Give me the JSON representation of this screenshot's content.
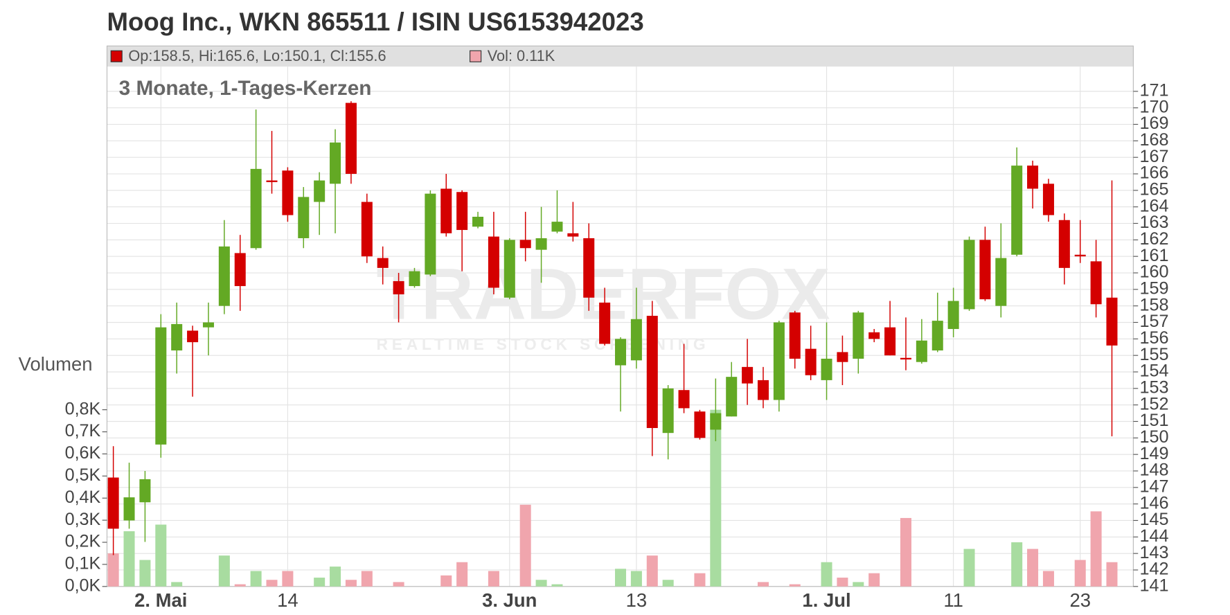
{
  "chart_data": {
    "type": "candlestick",
    "title": "Moog Inc., WKN 865511 / ISIN US6153942023",
    "subtitle": "3 Monate, 1-Tages-Kerzen",
    "legend_price": "Op:158.5, Hi:165.6, Lo:150.1, Cl:155.6",
    "legend_volume": "Vol: 0.11K",
    "volume_axis_label": "Volumen",
    "watermark": "TRADERFOX",
    "watermark_sub": "REALTIME STOCK SCREENING",
    "up_color": "#63a924",
    "down_color": "#d40000",
    "up_volume_color": "#a8dca0",
    "down_volume_color": "#f0a5ad",
    "grid": true,
    "categories": [
      null,
      null,
      null,
      "2. Mai",
      null,
      null,
      null,
      null,
      null,
      null,
      null,
      "14",
      null,
      null,
      null,
      null,
      null,
      null,
      null,
      null,
      null,
      null,
      null,
      null,
      null,
      "3. Jun",
      null,
      null,
      null,
      null,
      null,
      null,
      null,
      "13",
      null,
      null,
      null,
      null,
      null,
      null,
      null,
      null,
      null,
      null,
      null,
      "1. Jul",
      null,
      null,
      null,
      null,
      null,
      null,
      null,
      "11",
      null,
      null,
      null,
      null,
      null,
      null,
      null,
      "23",
      null,
      null
    ],
    "open": [
      147.6,
      145.0,
      146.1,
      149.6,
      155.3,
      156.5,
      156.7,
      158.0,
      161.2,
      161.5,
      165.6,
      166.2,
      162.1,
      164.3,
      165.4,
      170.3,
      164.3,
      160.9,
      159.5,
      159.2,
      159.9,
      165.1,
      164.9,
      162.8,
      162.2,
      158.5,
      162.0,
      161.4,
      162.5,
      162.4,
      162.1,
      158.2,
      154.4,
      154.7,
      157.4,
      150.3,
      152.9,
      151.6,
      150.5,
      151.3,
      154.3,
      153.5,
      152.3,
      157.6,
      155.4,
      153.5,
      155.2,
      154.8,
      156.4,
      156.7,
      154.85,
      154.6,
      155.3,
      156.6,
      157.8,
      162.0,
      158.0,
      161.1,
      166.5,
      165.4,
      163.2,
      161.1,
      160.7,
      158.5
    ],
    "high": [
      149.5,
      148.5,
      148.0,
      157.5,
      158.2,
      156.8,
      158.2,
      163.2,
      162.3,
      169.9,
      168.6,
      166.4,
      165.2,
      166.1,
      168.7,
      170.4,
      164.8,
      161.6,
      160.0,
      160.3,
      165.0,
      166.0,
      165.0,
      163.7,
      163.7,
      162.1,
      163.7,
      164.0,
      165.0,
      164.3,
      163.0,
      159.1,
      156.1,
      159.1,
      158.3,
      153.2,
      155.7,
      151.7,
      153.6,
      154.6,
      156.0,
      154.3,
      157.1,
      157.7,
      156.8,
      157.0,
      156.2,
      157.7,
      156.6,
      158.3,
      157.3,
      157.2,
      158.8,
      159.1,
      162.2,
      162.8,
      163.0,
      167.6,
      166.8,
      165.7,
      163.6,
      163.2,
      162.0,
      165.6
    ],
    "low": [
      142.9,
      144.5,
      143.7,
      148.8,
      153.9,
      152.5,
      155.0,
      157.5,
      157.7,
      161.4,
      164.8,
      163.1,
      161.5,
      162.3,
      162.4,
      165.4,
      160.6,
      159.3,
      157.0,
      159.1,
      159.8,
      162.2,
      160.1,
      162.7,
      158.7,
      158.4,
      160.7,
      159.4,
      162.4,
      161.9,
      157.7,
      155.6,
      151.6,
      154.2,
      148.9,
      148.7,
      151.5,
      149.9,
      149.8,
      151.3,
      152.0,
      151.8,
      151.6,
      154.2,
      153.5,
      152.3,
      153.2,
      153.9,
      155.8,
      155.0,
      154.1,
      154.5,
      155.2,
      156.1,
      157.7,
      158.3,
      157.3,
      161.0,
      163.9,
      163.1,
      159.3,
      160.6,
      157.3,
      150.1
    ],
    "close": [
      144.5,
      146.4,
      147.5,
      156.7,
      156.9,
      155.8,
      157.0,
      161.6,
      159.2,
      166.3,
      165.5,
      163.5,
      164.6,
      165.6,
      167.9,
      166.0,
      161.0,
      160.3,
      158.7,
      160.1,
      164.8,
      162.4,
      162.6,
      163.4,
      159.1,
      162.0,
      161.5,
      162.1,
      163.1,
      162.2,
      158.5,
      155.7,
      156.0,
      157.2,
      150.6,
      153.0,
      151.8,
      150.0,
      151.5,
      153.7,
      153.3,
      152.3,
      157.0,
      154.8,
      153.8,
      154.8,
      154.6,
      157.6,
      156.0,
      155.0,
      154.8,
      155.9,
      157.1,
      158.3,
      162.0,
      158.4,
      160.9,
      166.5,
      165.1,
      163.5,
      160.3,
      161.0,
      158.1,
      155.6
    ],
    "volume": [
      0.15,
      0.25,
      0.12,
      0.28,
      0.02,
      0,
      0,
      0.14,
      0.01,
      0.07,
      0.03,
      0.07,
      0,
      0.04,
      0.09,
      0.03,
      0.07,
      0,
      0.02,
      0,
      0,
      0.05,
      0.11,
      0,
      0.07,
      0,
      0.37,
      0.03,
      0.01,
      0,
      0,
      0,
      0.08,
      0.07,
      0.14,
      0.03,
      0,
      0.06,
      0.8,
      0,
      0,
      0.02,
      0,
      0.01,
      0,
      0.11,
      0.04,
      0.02,
      0.06,
      0,
      0.31,
      0,
      0,
      0,
      0.17,
      0,
      0,
      0.2,
      0.17,
      0.07,
      0,
      0.12,
      0.34,
      0.11
    ],
    "ylim": [
      141,
      172.5
    ],
    "yticks": [
      141,
      142,
      143,
      144,
      145,
      146,
      147,
      148,
      149,
      150,
      151,
      152,
      153,
      154,
      155,
      156,
      157,
      158,
      159,
      160,
      161,
      162,
      163,
      164,
      165,
      166,
      167,
      168,
      169,
      170,
      171
    ],
    "y2lim": [
      0,
      0.8
    ],
    "y2ticks": [
      {
        "value": 0,
        "label": "0,0K"
      },
      {
        "value": 0.1,
        "label": "0,1K"
      },
      {
        "value": 0.2,
        "label": "0,2K"
      },
      {
        "value": 0.3,
        "label": "0,3K"
      },
      {
        "value": 0.4,
        "label": "0,4K"
      },
      {
        "value": 0.5,
        "label": "0,5K"
      },
      {
        "value": 0.6,
        "label": "0,6K"
      },
      {
        "value": 0.7,
        "label": "0,7K"
      },
      {
        "value": 0.8,
        "label": "0,8K"
      }
    ]
  }
}
